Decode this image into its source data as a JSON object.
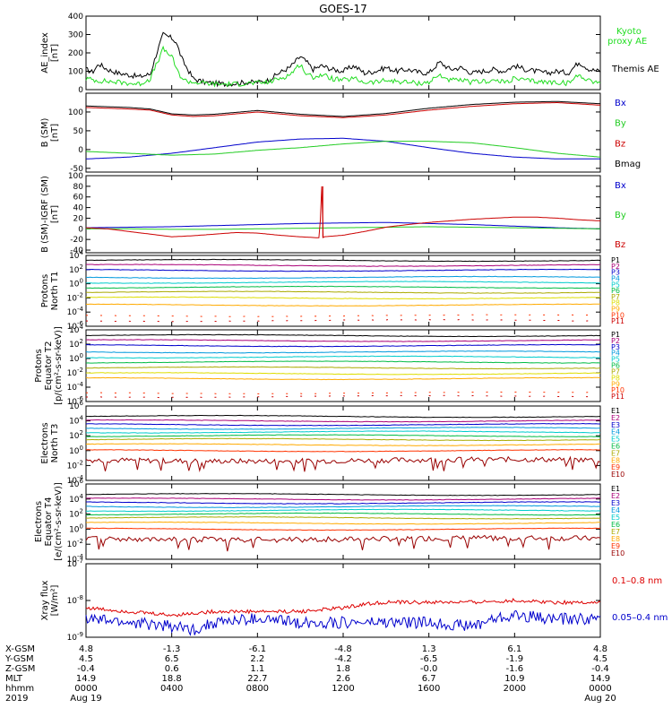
{
  "title": "GOES-17",
  "chart_data": [
    {
      "panel": "ae",
      "type": "line",
      "ylabel": [
        "AE_index",
        "[nT]"
      ],
      "ylim": [
        0,
        400
      ],
      "yticks": [
        "0",
        "100",
        "200",
        "300",
        "400"
      ],
      "legend": [
        {
          "text": "Kyoto",
          "color": "#22dd22"
        },
        {
          "text": "proxy AE",
          "color": "#22dd22"
        },
        {
          "text": "Themis AE",
          "color": "#000000"
        }
      ],
      "series": [
        {
          "name": "Themis AE",
          "color": "#000000",
          "x": [
            0,
            0.3,
            0.6,
            1,
            1.5,
            2,
            2.5,
            3,
            3.3,
            3.6,
            4,
            4.2,
            4.5,
            4.8,
            5,
            5.5,
            6,
            6.5,
            7,
            7.5,
            8,
            8.5,
            9,
            9.5,
            10,
            10.3,
            10.6,
            11,
            11.5,
            12,
            12.5,
            13,
            13.5,
            14,
            14.5,
            15,
            15.5,
            16,
            16.5,
            17,
            17.5,
            18,
            18.5,
            19,
            19.5,
            20,
            20.5,
            21,
            21.5,
            22,
            22.5,
            23,
            23.5,
            24
          ],
          "y": [
            110,
            95,
            140,
            110,
            90,
            80,
            70,
            85,
            200,
            300,
            280,
            260,
            160,
            100,
            60,
            40,
            35,
            30,
            35,
            40,
            40,
            50,
            90,
            120,
            180,
            150,
            110,
            130,
            110,
            100,
            130,
            90,
            100,
            120,
            100,
            110,
            95,
            90,
            150,
            110,
            120,
            90,
            100,
            110,
            100,
            130,
            110,
            100,
            90,
            100,
            90,
            150,
            110,
            100
          ]
        },
        {
          "name": "Kyoto proxy AE",
          "color": "#22dd22",
          "x": [
            0,
            0.5,
            1,
            1.5,
            2,
            2.5,
            3,
            3.3,
            3.6,
            4,
            4.3,
            4.6,
            5,
            5.5,
            6,
            6.5,
            7,
            7.5,
            8,
            8.5,
            9,
            9.5,
            10,
            10.3,
            10.6,
            11,
            11.5,
            12,
            12.5,
            13,
            13.5,
            14,
            14.5,
            15,
            15.5,
            16,
            16.5,
            17,
            17.5,
            18,
            18.5,
            19,
            19.5,
            20,
            20.5,
            21,
            21.5,
            22,
            22.5,
            23,
            23.5,
            24
          ],
          "y": [
            60,
            50,
            45,
            40,
            35,
            30,
            60,
            140,
            220,
            180,
            90,
            50,
            40,
            35,
            30,
            30,
            30,
            35,
            35,
            40,
            60,
            80,
            140,
            80,
            70,
            80,
            60,
            50,
            60,
            40,
            40,
            50,
            45,
            40,
            35,
            40,
            80,
            50,
            50,
            40,
            45,
            50,
            40,
            60,
            50,
            45,
            40,
            40,
            35,
            80,
            50,
            40
          ]
        }
      ]
    },
    {
      "panel": "bsm",
      "type": "line",
      "ylabel": [
        "B (SM)",
        "[nT]"
      ],
      "ylim": [
        -60,
        150
      ],
      "yticks": [
        "-50",
        "0",
        "50",
        "100"
      ],
      "legend": [
        {
          "text": "Bx",
          "color": "#0000cc"
        },
        {
          "text": "By",
          "color": "#22cc22"
        },
        {
          "text": "Bz",
          "color": "#cc0000"
        },
        {
          "text": "Bmag",
          "color": "#000000"
        }
      ],
      "series": [
        {
          "name": "Bx",
          "color": "#0000cc",
          "x": [
            0,
            2,
            4,
            6,
            8,
            10,
            12,
            14,
            16,
            18,
            20,
            22,
            24
          ],
          "y": [
            -25,
            -20,
            -10,
            5,
            20,
            28,
            30,
            22,
            5,
            -10,
            -20,
            -25,
            -25
          ]
        },
        {
          "name": "By",
          "color": "#22cc22",
          "x": [
            0,
            2,
            4,
            6,
            8,
            10,
            12,
            14,
            16,
            18,
            20,
            22,
            24
          ],
          "y": [
            -5,
            -10,
            -15,
            -12,
            -2,
            5,
            15,
            22,
            22,
            18,
            5,
            -10,
            -20
          ]
        },
        {
          "name": "Bz",
          "color": "#cc0000",
          "x": [
            0,
            1,
            2,
            3,
            4,
            5,
            6,
            8,
            10,
            12,
            14,
            16,
            18,
            20,
            22,
            24
          ],
          "y": [
            112,
            110,
            108,
            105,
            92,
            88,
            90,
            100,
            90,
            85,
            92,
            105,
            115,
            122,
            125,
            118
          ]
        },
        {
          "name": "Bmag",
          "color": "#000000",
          "x": [
            0,
            1,
            2,
            3,
            4,
            5,
            6,
            8,
            10,
            12,
            14,
            16,
            18,
            20,
            22,
            24
          ],
          "y": [
            116,
            114,
            112,
            108,
            95,
            92,
            94,
            104,
            94,
            88,
            96,
            110,
            120,
            126,
            128,
            122
          ]
        }
      ]
    },
    {
      "panel": "bdiff",
      "type": "line",
      "ylabel": [
        "B (SM)-IGRF (SM)",
        "[nT]"
      ],
      "ylim": [
        -45,
        100
      ],
      "yticks": [
        "-40",
        "-20",
        "0",
        "20",
        "40",
        "60",
        "80",
        "100"
      ],
      "legend": [
        {
          "text": "Bx",
          "color": "#0000cc"
        },
        {
          "text": "By",
          "color": "#22cc22"
        },
        {
          "text": "Bz",
          "color": "#cc0000"
        }
      ],
      "series": [
        {
          "name": "Bx",
          "color": "#0000cc",
          "x": [
            0,
            2,
            4,
            6,
            8,
            10,
            12,
            14,
            16,
            18,
            20,
            22,
            24
          ],
          "y": [
            2,
            3,
            4,
            6,
            8,
            10,
            11,
            12,
            10,
            8,
            5,
            2,
            0
          ]
        },
        {
          "name": "By",
          "color": "#22cc22",
          "x": [
            0,
            2,
            4,
            6,
            8,
            10,
            12,
            14,
            16,
            18,
            20,
            22,
            24
          ],
          "y": [
            0,
            0,
            -1,
            -1,
            0,
            1,
            2,
            3,
            4,
            3,
            2,
            1,
            0
          ]
        },
        {
          "name": "Bz",
          "color": "#cc0000",
          "x": [
            0,
            1,
            2,
            3,
            4,
            5,
            6,
            7,
            8,
            9,
            10,
            10.9,
            11,
            11.05,
            11.1,
            12,
            13,
            14,
            15,
            16,
            17,
            18,
            19,
            20,
            21,
            22,
            23,
            24
          ],
          "y": [
            2,
            0,
            -5,
            -10,
            -15,
            -13,
            -10,
            -7,
            -8,
            -12,
            -15,
            -17,
            80,
            -17,
            -15,
            -12,
            -5,
            3,
            8,
            12,
            15,
            18,
            20,
            22,
            22,
            20,
            17,
            15
          ]
        }
      ]
    },
    {
      "panel": "prot_t1",
      "type": "line",
      "yscale": "log",
      "ylabel": [
        "Protons",
        "North T1"
      ],
      "ylim_log10": [
        -6,
        4
      ],
      "yticks": [
        "10^4",
        "10^2",
        "10^0",
        "10^-2",
        "10^-4",
        "10^-6"
      ],
      "channels": [
        {
          "name": "P1",
          "color": "#000000",
          "level": 3.3
        },
        {
          "name": "P2",
          "color": "#aa0077",
          "level": 2.6
        },
        {
          "name": "P3",
          "color": "#0000cc",
          "level": 1.9
        },
        {
          "name": "P4",
          "color": "#0099dd",
          "level": 0.9
        },
        {
          "name": "P5",
          "color": "#00cccc",
          "level": 0.2
        },
        {
          "name": "P6",
          "color": "#00bb44",
          "level": -0.5
        },
        {
          "name": "P7",
          "color": "#aaaa00",
          "level": -1.2
        },
        {
          "name": "P8",
          "color": "#dddd00",
          "level": -2.0
        },
        {
          "name": "P9",
          "color": "#ffaa00",
          "level": -3.0
        },
        {
          "name": "P10",
          "color": "#ff3300",
          "level": -4.5
        },
        {
          "name": "P11",
          "color": "#cc0000",
          "level": -5.2
        }
      ]
    },
    {
      "panel": "prot_t2",
      "type": "line",
      "yscale": "log",
      "ylabel": [
        "Protons",
        "Equator T2",
        "[p/(cm²-s-sr-keV)]"
      ],
      "ylim_log10": [
        -6,
        4
      ],
      "yticks": [
        "10^4",
        "10^2",
        "10^0",
        "10^-2",
        "10^-4",
        "10^-6"
      ],
      "channels": [
        {
          "name": "P1",
          "color": "#000000",
          "level": 3.2
        },
        {
          "name": "P2",
          "color": "#aa0077",
          "level": 2.5
        },
        {
          "name": "P3",
          "color": "#0000cc",
          "level": 1.8
        },
        {
          "name": "P4",
          "color": "#0099dd",
          "level": 0.9
        },
        {
          "name": "P5",
          "color": "#00cccc",
          "level": 0.2
        },
        {
          "name": "P6",
          "color": "#00bb44",
          "level": -0.5
        },
        {
          "name": "P7",
          "color": "#aaaa00",
          "level": -1.3
        },
        {
          "name": "P8",
          "color": "#dddd00",
          "level": -2.1
        },
        {
          "name": "P9",
          "color": "#ffaa00",
          "level": -2.8
        },
        {
          "name": "P10",
          "color": "#ff3300",
          "level": -4.8
        },
        {
          "name": "P11",
          "color": "#cc0000",
          "level": -5.3
        }
      ]
    },
    {
      "panel": "elec_t3",
      "type": "line",
      "yscale": "log",
      "ylabel": [
        "Electrons",
        "North T3"
      ],
      "ylim_log10": [
        -4,
        6
      ],
      "yticks": [
        "10^6",
        "10^4",
        "10^2",
        "10^0",
        "10^-2",
        "10^-4"
      ],
      "channels": [
        {
          "name": "E1",
          "color": "#000000",
          "level": 4.6
        },
        {
          "name": "E2",
          "color": "#aa0077",
          "level": 4.0
        },
        {
          "name": "E3",
          "color": "#0000cc",
          "level": 3.5
        },
        {
          "name": "E4",
          "color": "#0099dd",
          "level": 3.0
        },
        {
          "name": "E5",
          "color": "#00cccc",
          "level": 2.5
        },
        {
          "name": "E6",
          "color": "#00bb44",
          "level": 2.0
        },
        {
          "name": "E7",
          "color": "#aaaa00",
          "level": 1.5
        },
        {
          "name": "E8",
          "color": "#ffaa00",
          "level": 0.8
        },
        {
          "name": "E9",
          "color": "#ff3300",
          "level": 0.0
        },
        {
          "name": "E10",
          "color": "#990000",
          "level": -1.3
        }
      ]
    },
    {
      "panel": "elec_t4",
      "type": "line",
      "yscale": "log",
      "ylabel": [
        "Electrons",
        "Equator T4",
        "[e/(cm²-s-sr-keV)]"
      ],
      "ylim_log10": [
        -4,
        6
      ],
      "yticks": [
        "10^6",
        "10^4",
        "10^2",
        "10^0",
        "10^-2",
        "10^-4"
      ],
      "channels": [
        {
          "name": "E1",
          "color": "#000000",
          "level": 4.6
        },
        {
          "name": "E2",
          "color": "#aa0077",
          "level": 4.0
        },
        {
          "name": "E3",
          "color": "#0000cc",
          "level": 3.5
        },
        {
          "name": "E4",
          "color": "#0099dd",
          "level": 3.0
        },
        {
          "name": "E5",
          "color": "#00cccc",
          "level": 2.5
        },
        {
          "name": "E6",
          "color": "#00bb44",
          "level": 2.0
        },
        {
          "name": "E7",
          "color": "#aaaa00",
          "level": 1.5
        },
        {
          "name": "E8",
          "color": "#ffaa00",
          "level": 0.8
        },
        {
          "name": "E9",
          "color": "#ff3300",
          "level": 0.0
        },
        {
          "name": "E10",
          "color": "#990000",
          "level": -1.3
        }
      ]
    },
    {
      "panel": "xray",
      "type": "line",
      "yscale": "log",
      "ylabel": [
        "Xray flux",
        "[W/m²]"
      ],
      "ylim_log10": [
        -9,
        -7
      ],
      "yticks": [
        "10^-7",
        "10^-8",
        "10^-9"
      ],
      "legend": [
        {
          "text": "0.1–0.8 nm",
          "color": "#dd0000"
        },
        {
          "text": "0.05–0.4 nm",
          "color": "#0000cc"
        }
      ],
      "series": [
        {
          "name": "0.1–0.8 nm",
          "color": "#dd0000",
          "x": [
            0,
            2,
            4,
            6,
            8,
            10,
            12,
            13,
            14,
            16,
            18,
            20,
            22,
            24
          ],
          "y": [
            -8.2,
            -8.3,
            -8.4,
            -8.3,
            -8.3,
            -8.3,
            -8.2,
            -8.1,
            -8.05,
            -8.05,
            -8.05,
            -8.0,
            -8.05,
            -8.05
          ]
        },
        {
          "name": "0.05–0.4 nm",
          "color": "#0000cc",
          "x": [
            0,
            2,
            4,
            5,
            6,
            8,
            10,
            12,
            14,
            16,
            18,
            19,
            20,
            22,
            24
          ],
          "y": [
            -8.5,
            -8.6,
            -8.7,
            -8.8,
            -8.6,
            -8.5,
            -8.6,
            -8.6,
            -8.6,
            -8.6,
            -8.7,
            -8.5,
            -8.4,
            -8.5,
            -8.5
          ]
        }
      ]
    }
  ],
  "x_axis": {
    "range_hours": [
      0,
      24
    ],
    "row_labels": [
      "X-GSM",
      "Y-GSM",
      "Z-GSM",
      "MLT",
      "hhmm",
      "2019"
    ],
    "columns": [
      {
        "hour": 0,
        "values": [
          "4.8",
          "4.5",
          "-0.4",
          "14.9",
          "0000",
          "Aug 19"
        ]
      },
      {
        "hour": 4,
        "values": [
          "-1.3",
          "6.5",
          "0.6",
          "18.8",
          "0400",
          ""
        ]
      },
      {
        "hour": 8,
        "values": [
          "-6.1",
          "2.2",
          "1.1",
          "22.7",
          "0800",
          ""
        ]
      },
      {
        "hour": 12,
        "values": [
          "-4.8",
          "-4.2",
          "1.8",
          "2.6",
          "1200",
          ""
        ]
      },
      {
        "hour": 16,
        "values": [
          "1.3",
          "-6.5",
          "-0.0",
          "6.7",
          "1600",
          ""
        ]
      },
      {
        "hour": 20,
        "values": [
          "6.1",
          "-1.9",
          "-1.6",
          "10.9",
          "2000",
          ""
        ]
      },
      {
        "hour": 24,
        "values": [
          "4.8",
          "4.5",
          "-0.4",
          "14.9",
          "0000",
          "Aug 20"
        ]
      }
    ]
  }
}
